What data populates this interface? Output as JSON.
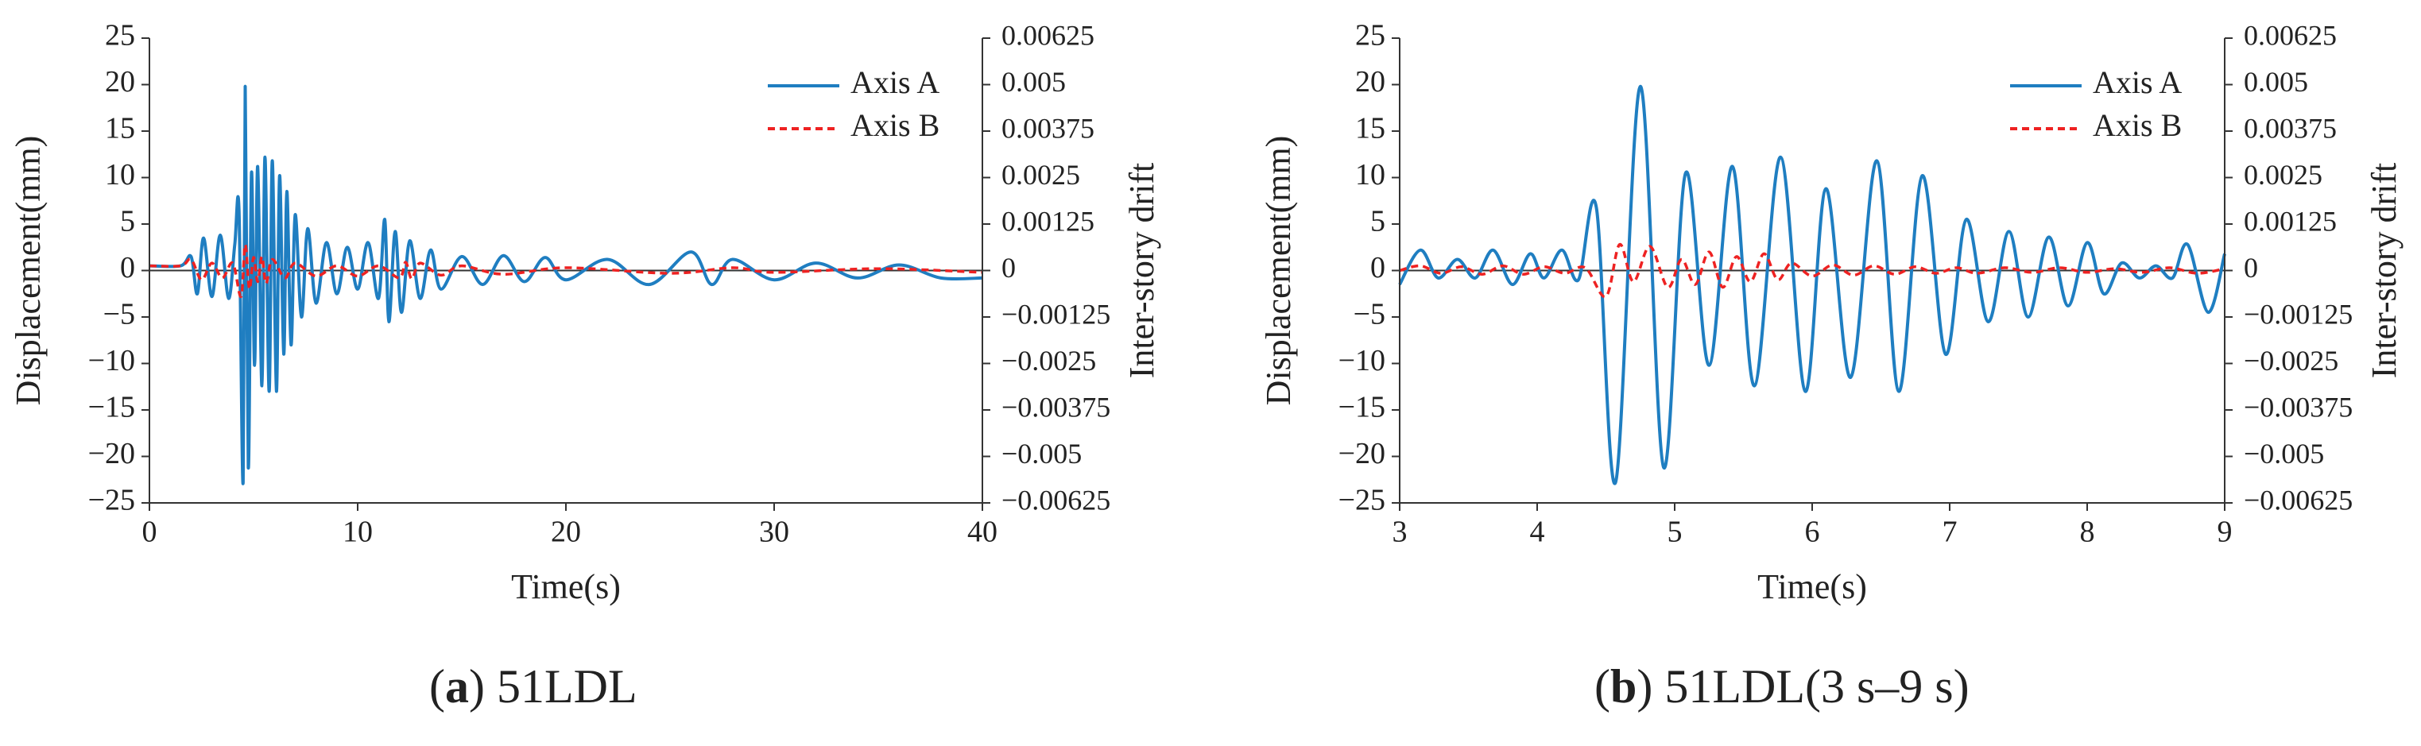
{
  "chart_data": [
    {
      "type": "line",
      "panel_letter": "a",
      "caption_text": "51LDL",
      "xlabel": "Time(s)",
      "ylabel": "Displacement(mm)",
      "y2label": "Inter-story drift",
      "xlim": [
        0,
        40
      ],
      "ylim": [
        -25,
        25
      ],
      "y2lim": [
        -0.00625,
        0.00625
      ],
      "xticks": [
        "0",
        "10",
        "20",
        "30",
        "40"
      ],
      "yticks": [
        "25",
        "20",
        "15",
        "10",
        "5",
        "0",
        "-5",
        "-10",
        "-15",
        "-20",
        "-25"
      ],
      "y2ticks": [
        "0.00625",
        "0.005",
        "0.00375",
        "0.0025",
        "0.00125",
        "0",
        "-0.00125",
        "-0.0025",
        "-0.00375",
        "-0.005",
        "-0.00625"
      ],
      "grid": false,
      "legend_position": "top-right",
      "series": [
        {
          "name": "Axis A",
          "color": "#1f7ec1",
          "style": "solid",
          "x": [
            0,
            1.5,
            2,
            2.3,
            2.6,
            3,
            3.4,
            3.8,
            4.1,
            4.3,
            4.5,
            4.6,
            4.75,
            4.9,
            5.05,
            5.2,
            5.4,
            5.55,
            5.75,
            5.9,
            6.1,
            6.25,
            6.45,
            6.6,
            6.8,
            7,
            7.3,
            7.6,
            8,
            8.5,
            9,
            9.5,
            10,
            10.5,
            11,
            11.3,
            11.5,
            11.8,
            12.1,
            12.5,
            13,
            13.5,
            14,
            15,
            16,
            17,
            18,
            19,
            20,
            22,
            24,
            26,
            27,
            28,
            30,
            32,
            34,
            36,
            38,
            40
          ],
          "values": [
            0.5,
            0.5,
            1.5,
            -2.5,
            3.5,
            -2.8,
            3.8,
            -3,
            2.8,
            6.5,
            -22.8,
            19.8,
            -21.2,
            10.5,
            -10.2,
            11.2,
            -12.4,
            12.2,
            -13,
            11.8,
            -13,
            10.2,
            -9,
            8.5,
            -8,
            6,
            -5,
            4.5,
            -3.5,
            3,
            -2.5,
            2.5,
            -2,
            3,
            -3,
            5.5,
            -5.5,
            4.2,
            -4.5,
            3.2,
            -3,
            2.2,
            -2,
            1.5,
            -1.5,
            1.6,
            -1.2,
            1.4,
            -1,
            1.2,
            -1.5,
            2,
            -1.5,
            1.2,
            -1,
            0.8,
            -0.8,
            0.6,
            -0.8,
            -0.8
          ]
        },
        {
          "name": "Axis B",
          "color": "#ee2222",
          "style": "dashed",
          "x": [
            0,
            1.5,
            2,
            2.5,
            3,
            3.5,
            4,
            4.4,
            4.6,
            4.8,
            5,
            5.2,
            5.4,
            5.6,
            5.9,
            6.5,
            7,
            8,
            9,
            10,
            11,
            12,
            12.3,
            12.6,
            13,
            14,
            15,
            17,
            20,
            25,
            28,
            30,
            35,
            40
          ],
          "values": [
            0.5,
            0.5,
            1.2,
            -1,
            0.8,
            -0.8,
            0.8,
            -2.8,
            2.8,
            -2,
            1.4,
            -1.2,
            1.5,
            -1.4,
            1.2,
            -0.8,
            0.8,
            -0.6,
            0.5,
            -0.6,
            0.5,
            -0.8,
            0.9,
            -0.9,
            0.8,
            -0.5,
            0.5,
            -0.4,
            0.3,
            -0.3,
            0.3,
            -0.2,
            0.2,
            -0.2
          ]
        }
      ]
    },
    {
      "type": "line",
      "panel_letter": "b",
      "caption_text": "51LDL(3 s–9 s)",
      "xlabel": "Time(s)",
      "ylabel": "Displacement(mm)",
      "y2label": "Inter-story drift",
      "xlim": [
        3,
        9
      ],
      "ylim": [
        -25,
        25
      ],
      "y2lim": [
        -0.00625,
        0.00625
      ],
      "xticks": [
        "3",
        "4",
        "5",
        "6",
        "7",
        "8",
        "9"
      ],
      "yticks": [
        "25",
        "20",
        "15",
        "10",
        "5",
        "0",
        "-5",
        "-10",
        "-15",
        "-20",
        "-25"
      ],
      "y2ticks": [
        "0.00625",
        "0.005",
        "0.00375",
        "0.0025",
        "0.00125",
        "0",
        "-0.00125",
        "-0.0025",
        "-0.00375",
        "-0.005",
        "-0.00625"
      ],
      "grid": false,
      "legend_position": "top-right",
      "series": [
        {
          "name": "Axis A",
          "color": "#1f7ec1",
          "style": "solid",
          "x": [
            3,
            3.15,
            3.28,
            3.42,
            3.55,
            3.68,
            3.82,
            3.95,
            4.05,
            4.18,
            4.3,
            4.43,
            4.57,
            4.75,
            4.92,
            5.08,
            5.25,
            5.42,
            5.58,
            5.77,
            5.95,
            6.1,
            6.28,
            6.47,
            6.63,
            6.8,
            6.97,
            7.12,
            7.28,
            7.43,
            7.57,
            7.72,
            7.86,
            8,
            8.12,
            8.25,
            8.38,
            8.5,
            8.62,
            8.73,
            8.88,
            9
          ],
          "values": [
            -1.5,
            2.2,
            -0.8,
            1.2,
            -0.8,
            2.2,
            -1.5,
            1.8,
            -0.8,
            2.2,
            -1,
            6.8,
            -22.8,
            19.8,
            -21.2,
            10.5,
            -10.2,
            11.2,
            -12.4,
            12.2,
            -13,
            8.8,
            -11.5,
            11.8,
            -13,
            10.2,
            -9,
            5.5,
            -5.5,
            4.2,
            -5,
            3.6,
            -3.8,
            3,
            -2.5,
            0.8,
            -0.8,
            0.5,
            -0.8,
            2.8,
            -4.5,
            1.8
          ]
        },
        {
          "name": "Axis B",
          "color": "#ee2222",
          "style": "dashed",
          "x": [
            3,
            3.15,
            3.3,
            3.45,
            3.6,
            3.75,
            3.9,
            4.05,
            4.2,
            4.35,
            4.5,
            4.6,
            4.7,
            4.82,
            4.95,
            5.05,
            5.15,
            5.25,
            5.35,
            5.45,
            5.55,
            5.65,
            5.75,
            5.85,
            6,
            6.15,
            6.3,
            6.45,
            6.6,
            6.75,
            6.9,
            7.05,
            7.2,
            7.4,
            7.6,
            7.8,
            8,
            8.2,
            8.4,
            8.6,
            8.8,
            9
          ],
          "values": [
            0,
            0.5,
            -0.3,
            0.4,
            -0.4,
            0.5,
            -0.4,
            0.4,
            -0.3,
            0.3,
            -2.8,
            2.8,
            -1.2,
            2.6,
            -1.8,
            1.2,
            -1.5,
            2,
            -1.8,
            1.5,
            -1.2,
            1.8,
            -1,
            0.8,
            -0.6,
            0.6,
            -0.5,
            0.5,
            -0.4,
            0.4,
            -0.3,
            0.3,
            -0.3,
            0.3,
            -0.2,
            0.3,
            -0.2,
            0.2,
            -0.2,
            0.3,
            -0.3,
            0.2
          ]
        }
      ]
    }
  ]
}
